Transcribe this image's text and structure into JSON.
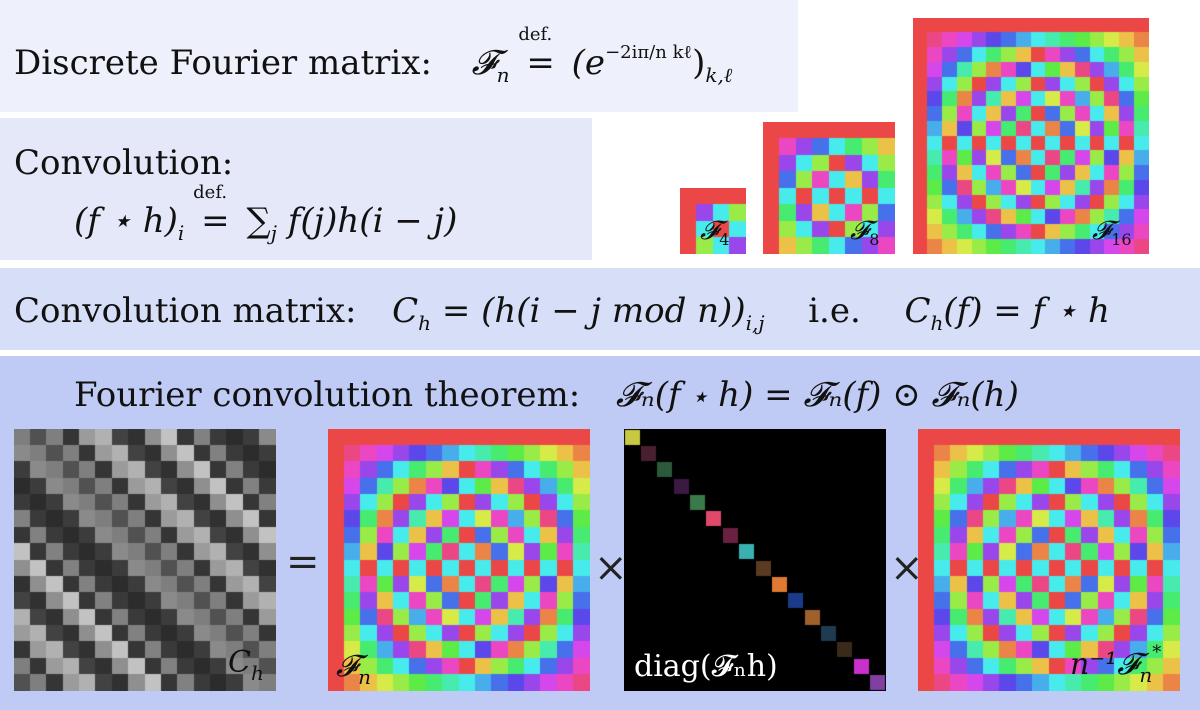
{
  "dft": {
    "label": "Discrete Fourier matrix:",
    "lhs": "𝓕",
    "lhs_sub": "n",
    "def": "def.",
    "eq": "=",
    "rhs_open": "(e",
    "exponent": "−2iπ/n kℓ",
    "rhs_close": ")",
    "rhs_sub": "k,ℓ"
  },
  "convolution": {
    "label": "Convolution:",
    "lhs": "(f ⋆ h)",
    "lhs_sub": "i",
    "def": "def.",
    "eq": "=",
    "sum": "∑",
    "sum_sub": "j",
    "rhs": "f(j)h(i − j)"
  },
  "conv_matrix": {
    "label": "Convolution matrix:",
    "lhs": "C",
    "lhs_sub": "h",
    "rhs": "= (h(i − j mod n))",
    "rhs_sub": "i,j",
    "ie": "i.e.",
    "rhs2_a": "C",
    "rhs2_sub": "h",
    "rhs2_b": "(f) = f ⋆ h"
  },
  "theorem": {
    "label": "Fourier convolution theorem:",
    "formula": "𝓕ₙ(f ⋆ h) = 𝓕ₙ(f) ⊙ 𝓕ₙ(h)"
  },
  "thumbnails": [
    {
      "n": 4,
      "label": "𝓕",
      "sub": "4"
    },
    {
      "n": 8,
      "label": "𝓕",
      "sub": "8"
    },
    {
      "n": 16,
      "label": "𝓕",
      "sub": "16"
    }
  ],
  "bottom": {
    "ch_label": "C",
    "ch_sub": "h",
    "eq_op": "=",
    "fn_label": "𝓕",
    "fn_sub": "n",
    "times1": "×",
    "diag_label": "diag(𝓕ₙh)",
    "times2": "×",
    "inv_label": "n⁻¹𝓕",
    "inv_sub": "n",
    "inv_sup": "*"
  },
  "colors": {
    "panel_1": "#eef1fb",
    "panel_2": "#e4e8f8",
    "panel_3": "#d7def8",
    "panel_4": "#bfcbf5"
  }
}
